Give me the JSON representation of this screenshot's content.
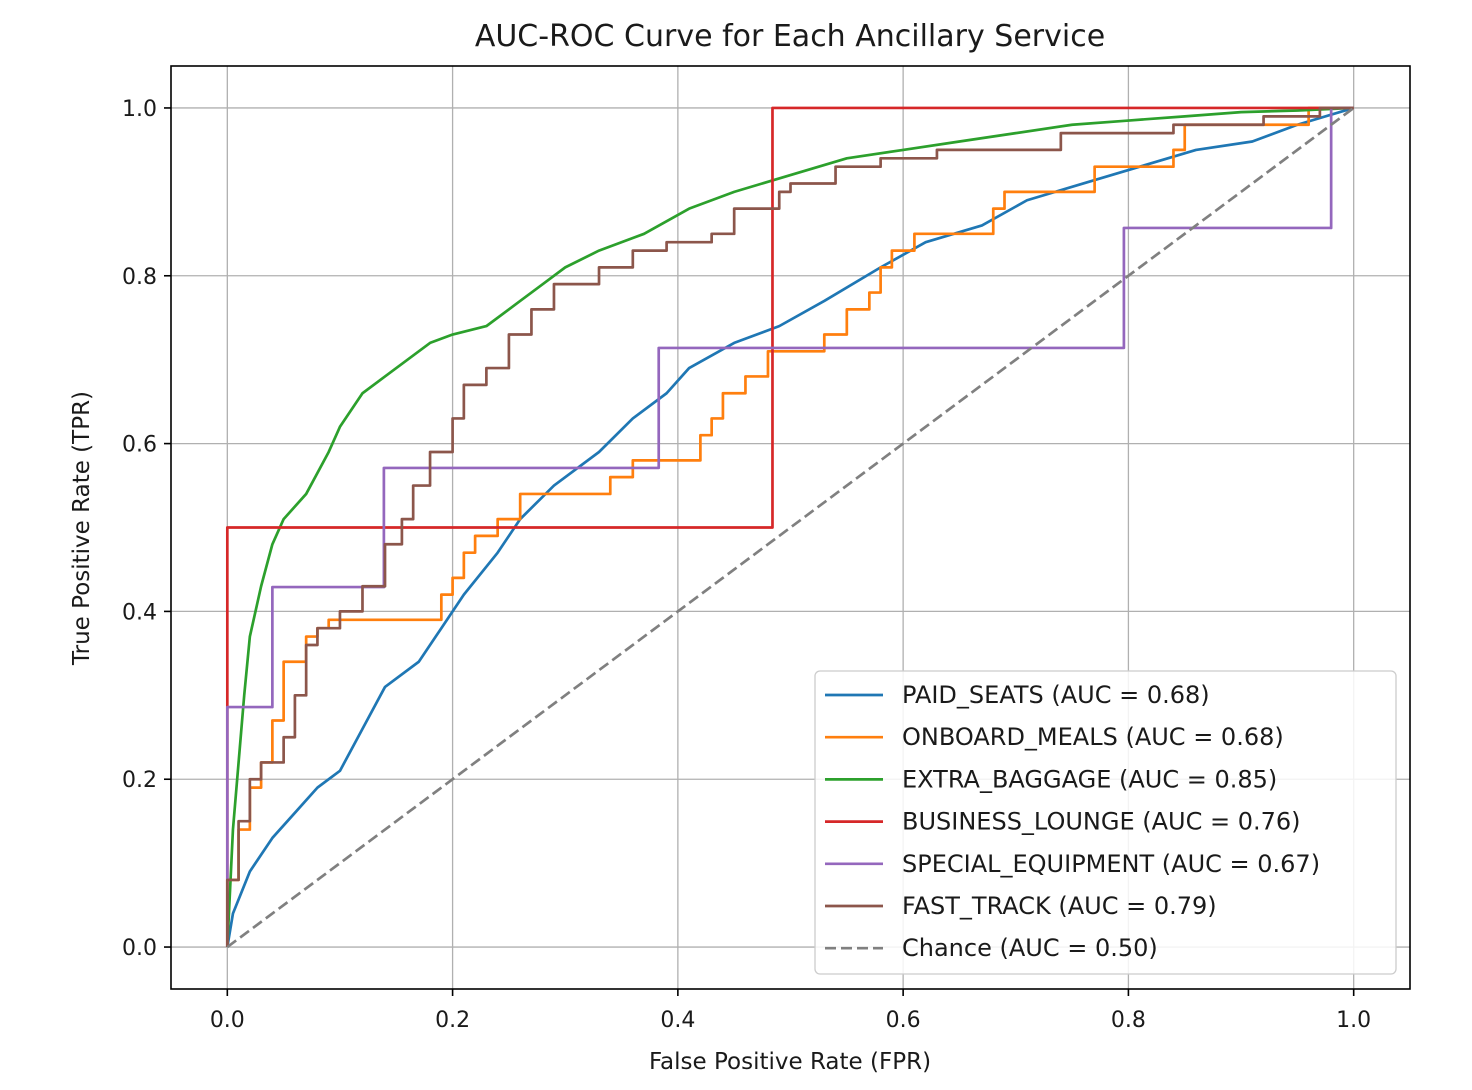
{
  "chart_data": {
    "type": "line",
    "title": "AUC-ROC Curve for Each Ancillary Service",
    "xlabel": "False Positive Rate (FPR)",
    "ylabel": "True Positive Rate (TPR)",
    "xlim": [
      -0.05,
      1.05
    ],
    "ylim": [
      -0.05,
      1.05
    ],
    "xticks": [
      0.0,
      0.2,
      0.4,
      0.6,
      0.8,
      1.0
    ],
    "yticks": [
      0.0,
      0.2,
      0.4,
      0.6,
      0.8,
      1.0
    ],
    "tick_labels": [
      "0.0",
      "0.2",
      "0.4",
      "0.6",
      "0.8",
      "1.0"
    ],
    "grid": true,
    "legend_position": "bottom-right",
    "series": [
      {
        "name": "PAID_SEATS (AUC = 0.68)",
        "color": "#1f77b4",
        "dash": "solid",
        "step": false,
        "points": [
          [
            0.0,
            0.0
          ],
          [
            0.005,
            0.04
          ],
          [
            0.02,
            0.09
          ],
          [
            0.04,
            0.13
          ],
          [
            0.06,
            0.16
          ],
          [
            0.08,
            0.19
          ],
          [
            0.1,
            0.21
          ],
          [
            0.12,
            0.26
          ],
          [
            0.14,
            0.31
          ],
          [
            0.17,
            0.34
          ],
          [
            0.19,
            0.38
          ],
          [
            0.21,
            0.42
          ],
          [
            0.24,
            0.47
          ],
          [
            0.26,
            0.51
          ],
          [
            0.29,
            0.55
          ],
          [
            0.33,
            0.59
          ],
          [
            0.36,
            0.63
          ],
          [
            0.39,
            0.66
          ],
          [
            0.41,
            0.69
          ],
          [
            0.45,
            0.72
          ],
          [
            0.49,
            0.74
          ],
          [
            0.53,
            0.77
          ],
          [
            0.58,
            0.81
          ],
          [
            0.62,
            0.84
          ],
          [
            0.67,
            0.86
          ],
          [
            0.71,
            0.89
          ],
          [
            0.76,
            0.91
          ],
          [
            0.81,
            0.93
          ],
          [
            0.86,
            0.95
          ],
          [
            0.91,
            0.96
          ],
          [
            0.95,
            0.98
          ],
          [
            1.0,
            1.0
          ]
        ]
      },
      {
        "name": "ONBOARD_MEALS (AUC = 0.68)",
        "color": "#ff7f0e",
        "dash": "solid",
        "step": true,
        "points": [
          [
            0.0,
            0.0
          ],
          [
            0.0,
            0.08
          ],
          [
            0.01,
            0.08
          ],
          [
            0.01,
            0.14
          ],
          [
            0.02,
            0.14
          ],
          [
            0.02,
            0.19
          ],
          [
            0.03,
            0.19
          ],
          [
            0.03,
            0.22
          ],
          [
            0.04,
            0.22
          ],
          [
            0.04,
            0.27
          ],
          [
            0.05,
            0.27
          ],
          [
            0.05,
            0.34
          ],
          [
            0.07,
            0.34
          ],
          [
            0.07,
            0.37
          ],
          [
            0.08,
            0.37
          ],
          [
            0.08,
            0.38
          ],
          [
            0.09,
            0.38
          ],
          [
            0.09,
            0.39
          ],
          [
            0.19,
            0.39
          ],
          [
            0.19,
            0.42
          ],
          [
            0.2,
            0.42
          ],
          [
            0.2,
            0.44
          ],
          [
            0.21,
            0.44
          ],
          [
            0.21,
            0.47
          ],
          [
            0.22,
            0.47
          ],
          [
            0.22,
            0.49
          ],
          [
            0.24,
            0.49
          ],
          [
            0.24,
            0.51
          ],
          [
            0.26,
            0.51
          ],
          [
            0.26,
            0.54
          ],
          [
            0.34,
            0.54
          ],
          [
            0.34,
            0.56
          ],
          [
            0.36,
            0.56
          ],
          [
            0.36,
            0.58
          ],
          [
            0.42,
            0.58
          ],
          [
            0.42,
            0.61
          ],
          [
            0.43,
            0.61
          ],
          [
            0.43,
            0.63
          ],
          [
            0.44,
            0.63
          ],
          [
            0.44,
            0.66
          ],
          [
            0.46,
            0.66
          ],
          [
            0.46,
            0.68
          ],
          [
            0.48,
            0.68
          ],
          [
            0.48,
            0.71
          ],
          [
            0.53,
            0.71
          ],
          [
            0.53,
            0.73
          ],
          [
            0.55,
            0.73
          ],
          [
            0.55,
            0.76
          ],
          [
            0.57,
            0.76
          ],
          [
            0.57,
            0.78
          ],
          [
            0.58,
            0.78
          ],
          [
            0.58,
            0.81
          ],
          [
            0.59,
            0.81
          ],
          [
            0.59,
            0.83
          ],
          [
            0.61,
            0.83
          ],
          [
            0.61,
            0.85
          ],
          [
            0.68,
            0.85
          ],
          [
            0.68,
            0.88
          ],
          [
            0.69,
            0.88
          ],
          [
            0.69,
            0.9
          ],
          [
            0.77,
            0.9
          ],
          [
            0.77,
            0.93
          ],
          [
            0.84,
            0.93
          ],
          [
            0.84,
            0.95
          ],
          [
            0.85,
            0.95
          ],
          [
            0.85,
            0.98
          ],
          [
            0.96,
            0.98
          ],
          [
            0.96,
            1.0
          ],
          [
            1.0,
            1.0
          ]
        ]
      },
      {
        "name": "EXTRA_BAGGAGE (AUC = 0.85)",
        "color": "#2ca02c",
        "dash": "solid",
        "step": false,
        "points": [
          [
            0.0,
            0.0
          ],
          [
            0.005,
            0.14
          ],
          [
            0.01,
            0.22
          ],
          [
            0.015,
            0.3
          ],
          [
            0.02,
            0.37
          ],
          [
            0.03,
            0.43
          ],
          [
            0.04,
            0.48
          ],
          [
            0.05,
            0.51
          ],
          [
            0.07,
            0.54
          ],
          [
            0.09,
            0.59
          ],
          [
            0.1,
            0.62
          ],
          [
            0.12,
            0.66
          ],
          [
            0.14,
            0.68
          ],
          [
            0.16,
            0.7
          ],
          [
            0.18,
            0.72
          ],
          [
            0.2,
            0.73
          ],
          [
            0.23,
            0.74
          ],
          [
            0.26,
            0.77
          ],
          [
            0.28,
            0.79
          ],
          [
            0.3,
            0.81
          ],
          [
            0.33,
            0.83
          ],
          [
            0.37,
            0.85
          ],
          [
            0.41,
            0.88
          ],
          [
            0.45,
            0.9
          ],
          [
            0.5,
            0.92
          ],
          [
            0.55,
            0.94
          ],
          [
            0.6,
            0.95
          ],
          [
            0.65,
            0.96
          ],
          [
            0.7,
            0.97
          ],
          [
            0.75,
            0.98
          ],
          [
            0.8,
            0.985
          ],
          [
            0.85,
            0.99
          ],
          [
            0.9,
            0.995
          ],
          [
            0.95,
            0.997
          ],
          [
            1.0,
            1.0
          ]
        ]
      },
      {
        "name": "BUSINESS_LOUNGE (AUC = 0.76)",
        "color": "#d62728",
        "dash": "solid",
        "step": true,
        "points": [
          [
            0.0,
            0.0
          ],
          [
            0.0,
            0.5
          ],
          [
            0.484,
            0.5
          ],
          [
            0.484,
            1.0
          ],
          [
            1.0,
            1.0
          ]
        ]
      },
      {
        "name": "SPECIAL_EQUIPMENT (AUC = 0.67)",
        "color": "#9467bd",
        "dash": "solid",
        "step": true,
        "points": [
          [
            0.0,
            0.0
          ],
          [
            0.0,
            0.286
          ],
          [
            0.04,
            0.286
          ],
          [
            0.04,
            0.429
          ],
          [
            0.139,
            0.429
          ],
          [
            0.139,
            0.571
          ],
          [
            0.383,
            0.571
          ],
          [
            0.383,
            0.714
          ],
          [
            0.796,
            0.714
          ],
          [
            0.796,
            0.857
          ],
          [
            0.98,
            0.857
          ],
          [
            0.98,
            1.0
          ],
          [
            1.0,
            1.0
          ]
        ]
      },
      {
        "name": "FAST_TRACK (AUC = 0.79)",
        "color": "#8c564b",
        "dash": "solid",
        "step": true,
        "points": [
          [
            0.0,
            0.0
          ],
          [
            0.0,
            0.08
          ],
          [
            0.01,
            0.08
          ],
          [
            0.01,
            0.15
          ],
          [
            0.02,
            0.15
          ],
          [
            0.02,
            0.2
          ],
          [
            0.03,
            0.2
          ],
          [
            0.03,
            0.22
          ],
          [
            0.05,
            0.22
          ],
          [
            0.05,
            0.25
          ],
          [
            0.06,
            0.25
          ],
          [
            0.06,
            0.3
          ],
          [
            0.07,
            0.3
          ],
          [
            0.07,
            0.36
          ],
          [
            0.08,
            0.36
          ],
          [
            0.08,
            0.38
          ],
          [
            0.1,
            0.38
          ],
          [
            0.1,
            0.4
          ],
          [
            0.12,
            0.4
          ],
          [
            0.12,
            0.43
          ],
          [
            0.14,
            0.43
          ],
          [
            0.14,
            0.48
          ],
          [
            0.155,
            0.48
          ],
          [
            0.155,
            0.51
          ],
          [
            0.165,
            0.51
          ],
          [
            0.165,
            0.55
          ],
          [
            0.18,
            0.55
          ],
          [
            0.18,
            0.59
          ],
          [
            0.2,
            0.59
          ],
          [
            0.2,
            0.63
          ],
          [
            0.21,
            0.63
          ],
          [
            0.21,
            0.67
          ],
          [
            0.23,
            0.67
          ],
          [
            0.23,
            0.69
          ],
          [
            0.25,
            0.69
          ],
          [
            0.25,
            0.73
          ],
          [
            0.27,
            0.73
          ],
          [
            0.27,
            0.76
          ],
          [
            0.29,
            0.76
          ],
          [
            0.29,
            0.79
          ],
          [
            0.33,
            0.79
          ],
          [
            0.33,
            0.81
          ],
          [
            0.36,
            0.81
          ],
          [
            0.36,
            0.83
          ],
          [
            0.39,
            0.83
          ],
          [
            0.39,
            0.84
          ],
          [
            0.43,
            0.84
          ],
          [
            0.43,
            0.85
          ],
          [
            0.45,
            0.85
          ],
          [
            0.45,
            0.88
          ],
          [
            0.49,
            0.88
          ],
          [
            0.49,
            0.9
          ],
          [
            0.5,
            0.9
          ],
          [
            0.5,
            0.91
          ],
          [
            0.54,
            0.91
          ],
          [
            0.54,
            0.93
          ],
          [
            0.58,
            0.93
          ],
          [
            0.58,
            0.94
          ],
          [
            0.63,
            0.94
          ],
          [
            0.63,
            0.95
          ],
          [
            0.74,
            0.95
          ],
          [
            0.74,
            0.97
          ],
          [
            0.84,
            0.97
          ],
          [
            0.84,
            0.98
          ],
          [
            0.92,
            0.98
          ],
          [
            0.92,
            0.99
          ],
          [
            0.97,
            0.99
          ],
          [
            0.97,
            1.0
          ],
          [
            1.0,
            1.0
          ]
        ]
      },
      {
        "name": "Chance (AUC = 0.50)",
        "color": "#808080",
        "dash": "dashed",
        "step": false,
        "points": [
          [
            0.0,
            0.0
          ],
          [
            1.0,
            1.0
          ]
        ]
      }
    ]
  }
}
